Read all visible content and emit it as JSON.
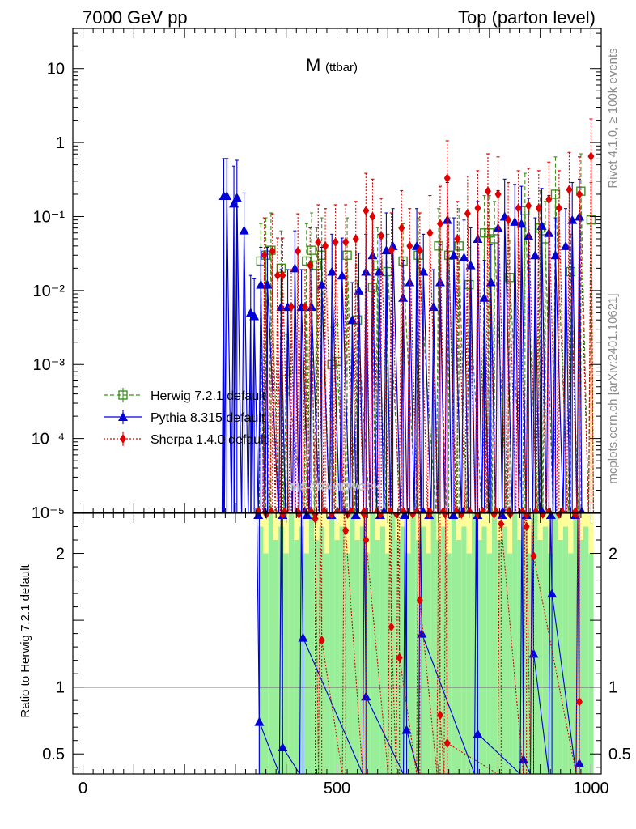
{
  "header": {
    "left": "7000 GeV pp",
    "right": "Top (parton level)"
  },
  "side": {
    "rivet": "Rivet 4.1.0, ≥ 100k events",
    "mcplots": "mcplots.cern.ch [arXiv:2401.10621]"
  },
  "chart_data": {
    "type": "scatter",
    "title": "M (ttbar)",
    "title_main": "M",
    "title_sub": "(ttbar)",
    "watermark": "MC-FRAMEWORK",
    "xlabel": "",
    "ylabel_ratio": "Ratio to Herwig 7.2.1 default",
    "xlim": [
      -20,
      1020
    ],
    "ylim": [
      1e-05,
      35
    ],
    "ratio_ylim": [
      0.35,
      2.3
    ],
    "x_ticks": [
      "0",
      "500",
      "1000"
    ],
    "y_ticks": [
      "10",
      "1",
      "10⁻¹",
      "10⁻²",
      "10⁻³",
      "10⁻⁴",
      "10⁻⁵"
    ],
    "ratio_ticks": [
      "2",
      "1",
      "0.5"
    ],
    "legend": [
      {
        "name": "Herwig 7.2.1 default",
        "color": "#3f8f1f",
        "marker": "open-square",
        "style": "dashed"
      },
      {
        "name": "Pythia 8.315 default",
        "color": "#0000d8",
        "marker": "triangle",
        "style": "solid"
      },
      {
        "name": "Sherpa 1.4.0 default",
        "color": "#e00000",
        "marker": "diamond",
        "style": "dotted"
      }
    ],
    "band_colors": {
      "inner": "#99ee99",
      "outer": "#ffff99"
    },
    "series": [
      {
        "name": "Herwig 7.2.1 default",
        "points": [
          [
            350,
            0.025
          ],
          [
            360,
            0.03
          ],
          [
            370,
            0.035
          ],
          [
            390,
            0.02
          ],
          [
            400,
            0.0008
          ],
          [
            440,
            0.025
          ],
          [
            450,
            0.035
          ],
          [
            460,
            0.022
          ],
          [
            470,
            0.03
          ],
          [
            490,
            0.001
          ],
          [
            500,
            0.0011
          ],
          [
            520,
            0.03
          ],
          [
            540,
            0.004
          ],
          [
            570,
            0.011
          ],
          [
            580,
            0.022
          ],
          [
            600,
            0.018
          ],
          [
            630,
            0.025
          ],
          [
            660,
            0.03
          ],
          [
            700,
            0.04
          ],
          [
            720,
            0.03
          ],
          [
            740,
            0.04
          ],
          [
            760,
            0.012
          ],
          [
            790,
            0.06
          ],
          [
            800,
            0.06
          ],
          [
            810,
            0.05
          ],
          [
            840,
            0.015
          ],
          [
            870,
            0.12
          ],
          [
            900,
            0.07
          ],
          [
            910,
            0.05
          ],
          [
            930,
            0.2
          ],
          [
            960,
            0.018
          ],
          [
            980,
            0.22
          ],
          [
            1000,
            0.09
          ]
        ]
      },
      {
        "name": "Pythia 8.315 default",
        "points": [
          [
            277,
            0.19
          ],
          [
            283,
            0.19
          ],
          [
            297,
            0.15
          ],
          [
            303,
            0.18
          ],
          [
            317,
            0.065
          ],
          [
            330,
            0.005
          ],
          [
            337,
            0.0045
          ],
          [
            350,
            0.012
          ],
          [
            363,
            0.012
          ],
          [
            390,
            0.006
          ],
          [
            403,
            0.006
          ],
          [
            417,
            0.02
          ],
          [
            430,
            0.006
          ],
          [
            450,
            0.006
          ],
          [
            470,
            0.012
          ],
          [
            490,
            0.018
          ],
          [
            510,
            0.016
          ],
          [
            530,
            0.004
          ],
          [
            543,
            0.01
          ],
          [
            557,
            0.018
          ],
          [
            570,
            0.03
          ],
          [
            583,
            0.018
          ],
          [
            597,
            0.035
          ],
          [
            610,
            0.04
          ],
          [
            630,
            0.008
          ],
          [
            643,
            0.013
          ],
          [
            657,
            0.04
          ],
          [
            670,
            0.018
          ],
          [
            690,
            0.006
          ],
          [
            703,
            0.013
          ],
          [
            717,
            0.09
          ],
          [
            730,
            0.03
          ],
          [
            750,
            0.028
          ],
          [
            763,
            0.022
          ],
          [
            777,
            0.05
          ],
          [
            790,
            0.008
          ],
          [
            803,
            0.013
          ],
          [
            817,
            0.07
          ],
          [
            830,
            0.1
          ],
          [
            850,
            0.085
          ],
          [
            863,
            0.08
          ],
          [
            877,
            0.055
          ],
          [
            890,
            0.03
          ],
          [
            903,
            0.075
          ],
          [
            917,
            0.06
          ],
          [
            930,
            0.03
          ],
          [
            950,
            0.04
          ],
          [
            963,
            0.09
          ],
          [
            977,
            0.1
          ]
        ]
      },
      {
        "name": "Sherpa 1.4.0 default",
        "points": [
          [
            357,
            0.03
          ],
          [
            373,
            0.034
          ],
          [
            383,
            0.016
          ],
          [
            393,
            0.016
          ],
          [
            410,
            0.006
          ],
          [
            423,
            0.034
          ],
          [
            437,
            0.006
          ],
          [
            447,
            0.022
          ],
          [
            463,
            0.045
          ],
          [
            477,
            0.04
          ],
          [
            497,
            0.045
          ],
          [
            517,
            0.045
          ],
          [
            537,
            0.05
          ],
          [
            557,
            0.12
          ],
          [
            570,
            0.1
          ],
          [
            587,
            0.055
          ],
          [
            607,
            0.035
          ],
          [
            627,
            0.07
          ],
          [
            643,
            0.04
          ],
          [
            663,
            0.035
          ],
          [
            683,
            0.06
          ],
          [
            703,
            0.08
          ],
          [
            717,
            0.33
          ],
          [
            737,
            0.05
          ],
          [
            757,
            0.11
          ],
          [
            777,
            0.13
          ],
          [
            797,
            0.22
          ],
          [
            817,
            0.2
          ],
          [
            837,
            0.09
          ],
          [
            857,
            0.13
          ],
          [
            877,
            0.14
          ],
          [
            897,
            0.13
          ],
          [
            917,
            0.17
          ],
          [
            937,
            0.13
          ],
          [
            957,
            0.23
          ],
          [
            977,
            0.2
          ],
          [
            1000,
            0.65
          ]
        ]
      }
    ],
    "ratio_series": [
      {
        "name": "Pythia 8.315 default",
        "points": [
          [
            347,
            0.74
          ],
          [
            393,
            0.55
          ],
          [
            433,
            1.37
          ],
          [
            557,
            0.93
          ],
          [
            637,
            0.68
          ],
          [
            667,
            1.4
          ],
          [
            777,
            0.65
          ],
          [
            867,
            0.46
          ],
          [
            887,
            1.25
          ],
          [
            923,
            1.7
          ],
          [
            977,
            0.43
          ]
        ]
      },
      {
        "name": "Sherpa 1.4.0 default",
        "points": [
          [
            457,
            2.26
          ],
          [
            470,
            1.35
          ],
          [
            517,
            2.17
          ],
          [
            557,
            2.1
          ],
          [
            607,
            1.45
          ],
          [
            623,
            1.22
          ],
          [
            663,
            1.65
          ],
          [
            703,
            0.79
          ],
          [
            717,
            0.58
          ],
          [
            823,
            2.22
          ],
          [
            873,
            2.2
          ],
          [
            887,
            1.98
          ],
          [
            977,
            0.89
          ]
        ]
      }
    ]
  }
}
